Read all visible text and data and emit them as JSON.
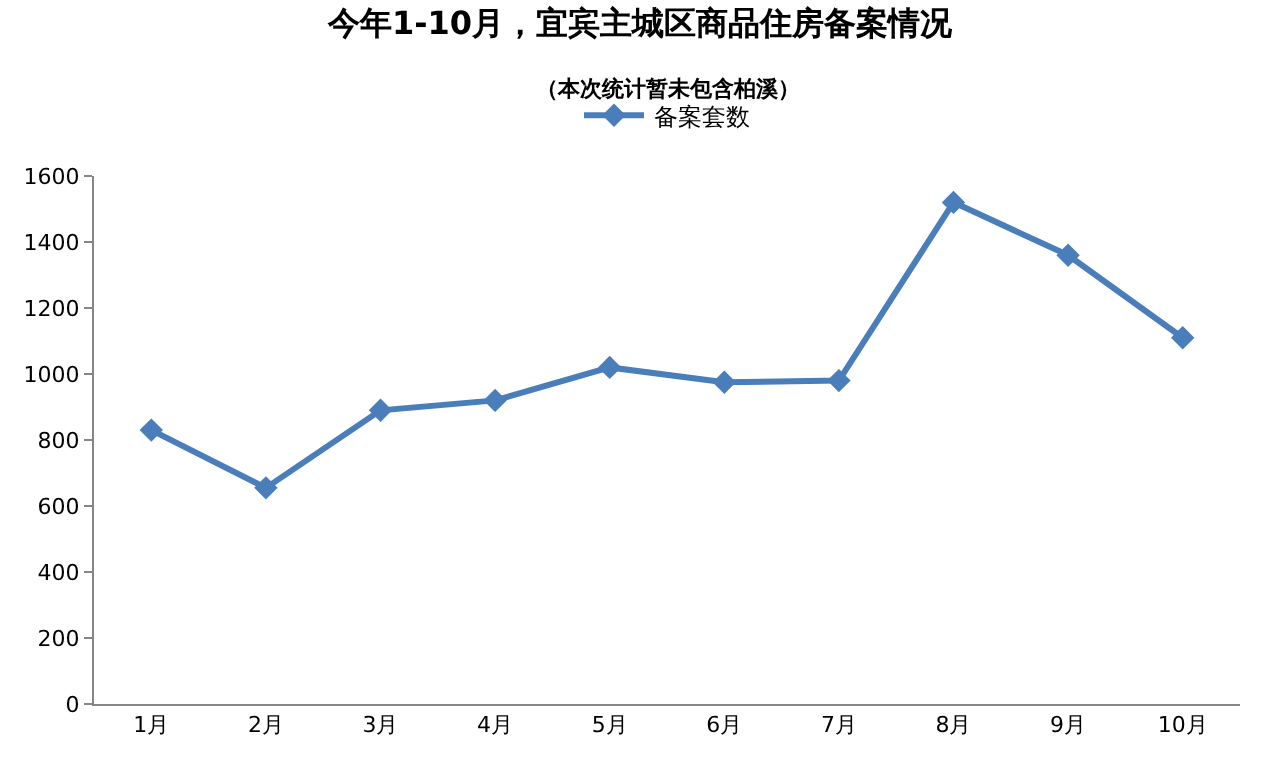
{
  "chart_data": {
    "type": "line",
    "title": "今年1-10月，宜宾主城区商品住房备案情况",
    "subtitle": "（本次统计暂未包含柏溪）",
    "categories": [
      "1月",
      "2月",
      "3月",
      "4月",
      "5月",
      "6月",
      "7月",
      "8月",
      "9月",
      "10月"
    ],
    "series": [
      {
        "name": "备案套数",
        "color": "#4a7ebb",
        "values": [
          830,
          655,
          890,
          920,
          1020,
          975,
          980,
          1520,
          1360,
          1110
        ]
      }
    ],
    "ylim": [
      0,
      1600
    ],
    "yticks": [
      0,
      200,
      400,
      600,
      800,
      1000,
      1200,
      1400,
      1600
    ],
    "grid": false,
    "legend": "top",
    "marker": "diamond",
    "line_style": "solid"
  }
}
